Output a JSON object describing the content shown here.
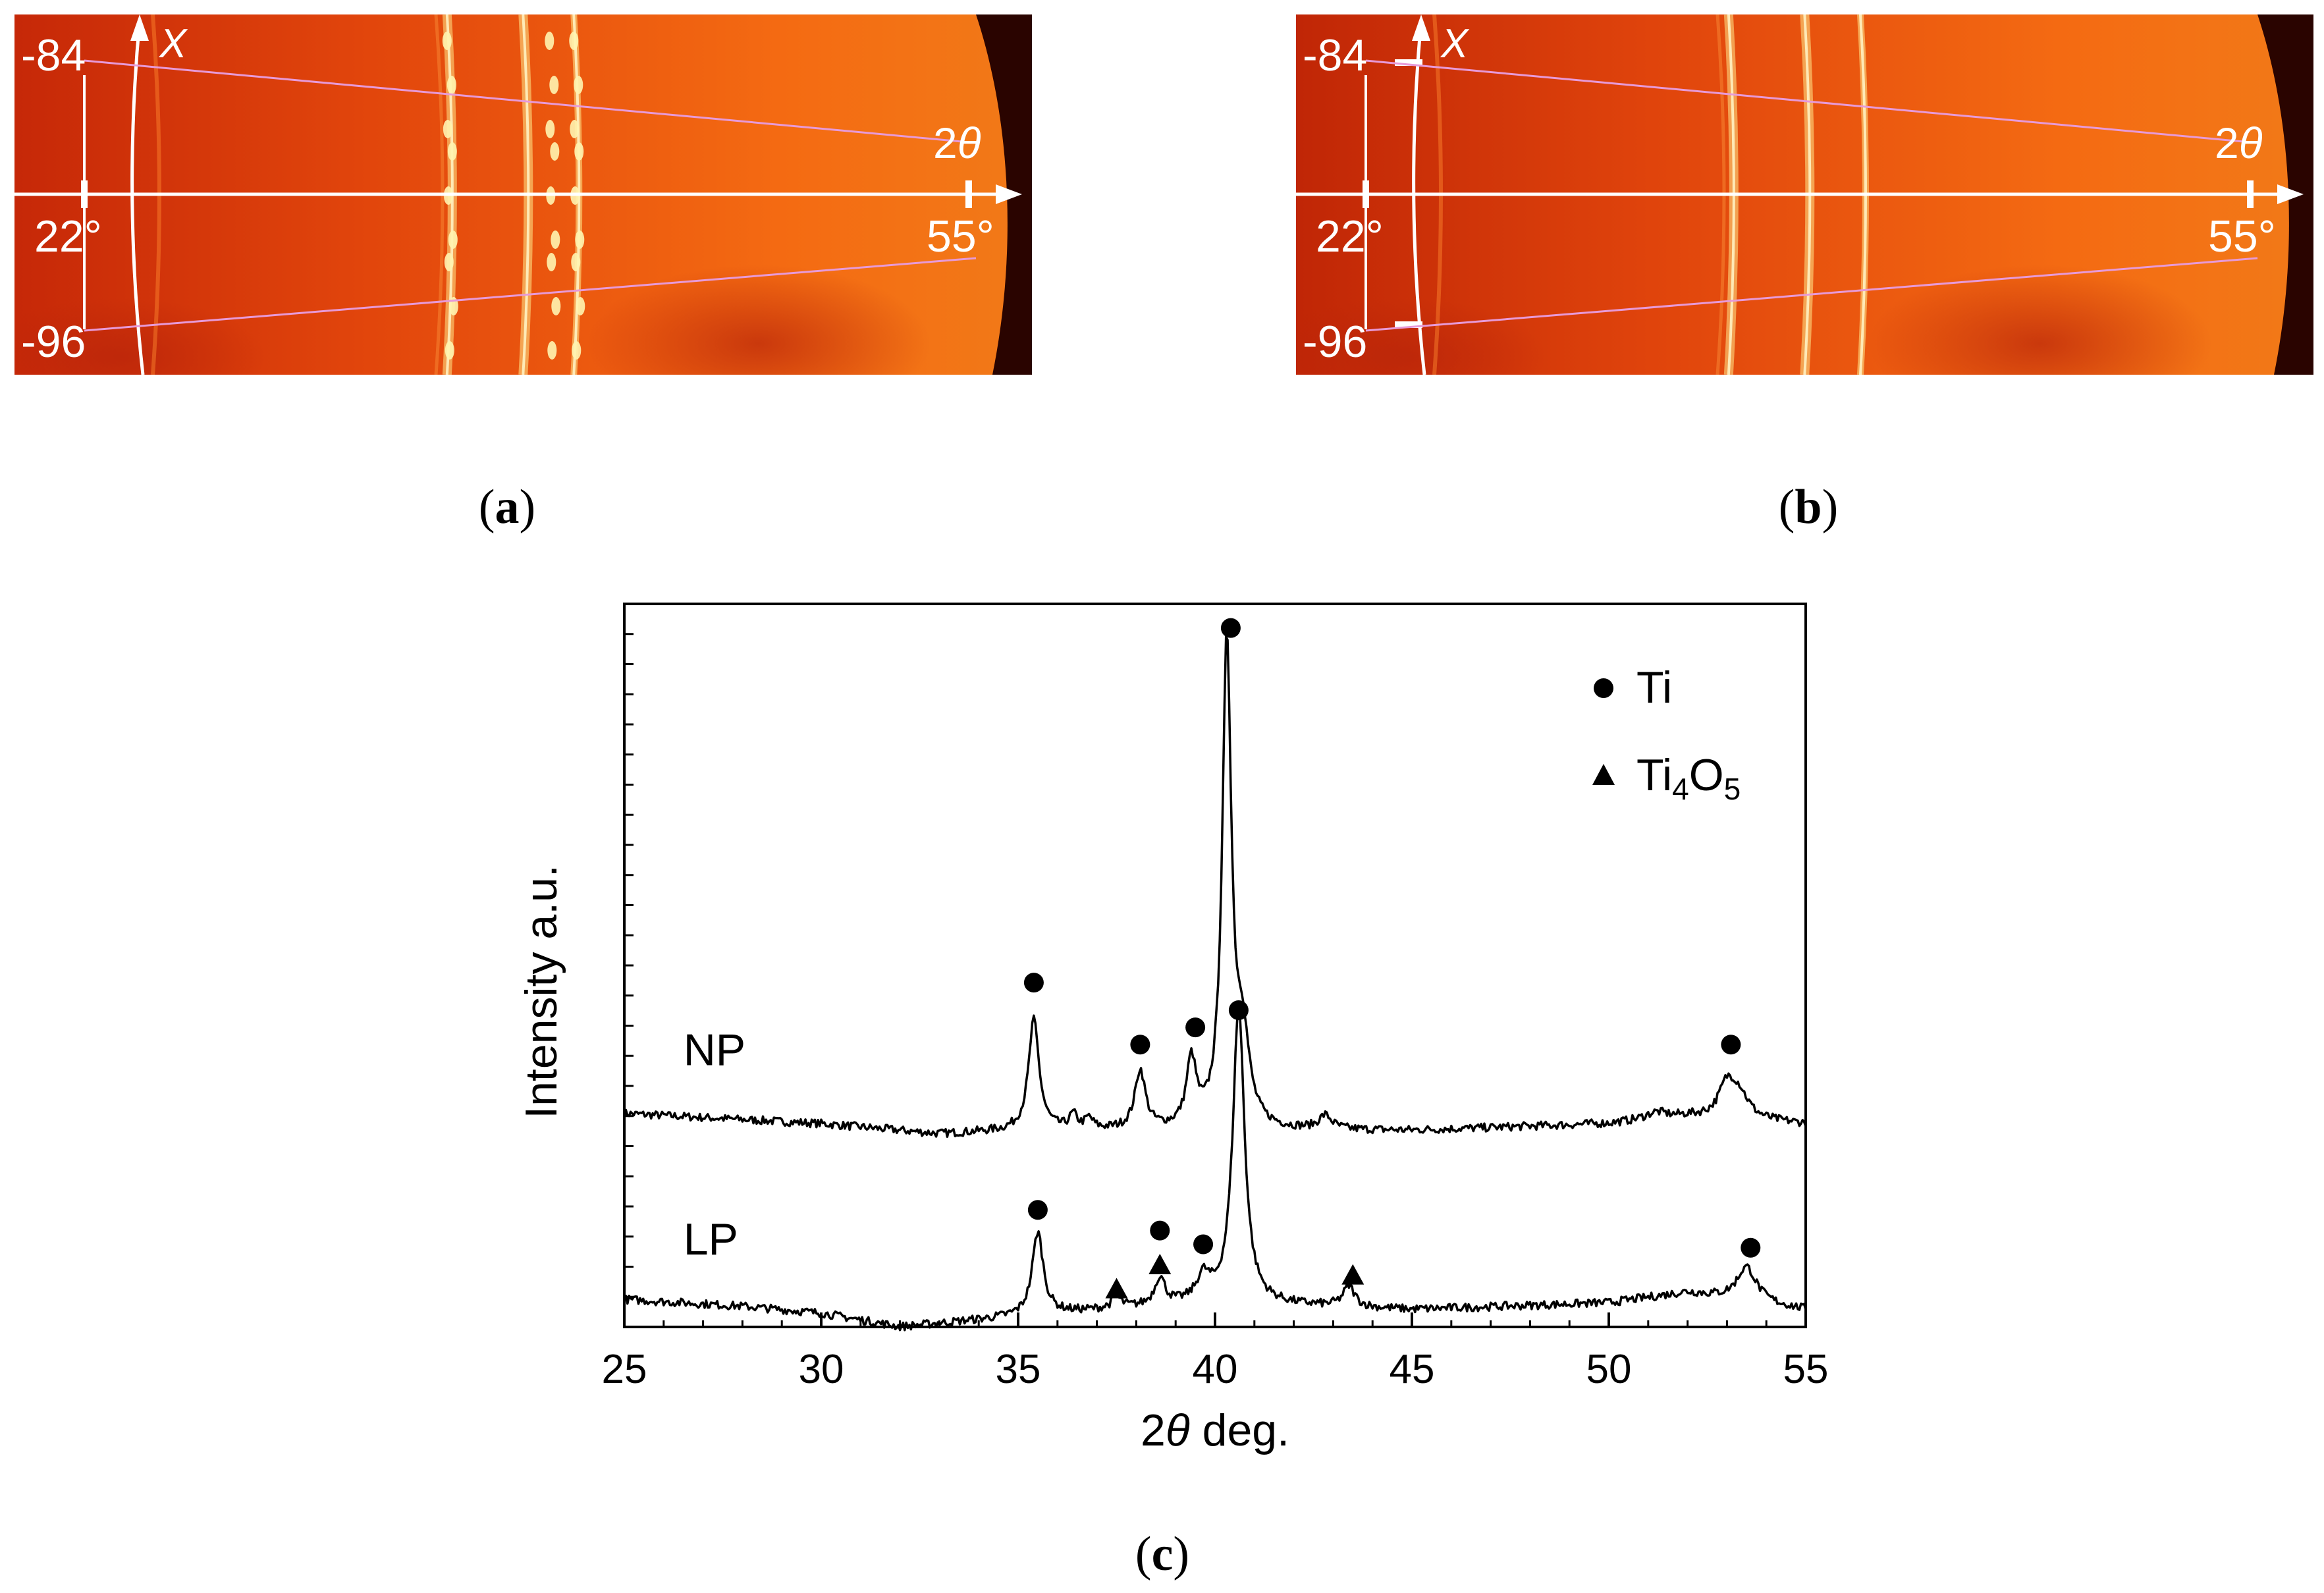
{
  "panels": [
    {
      "caption": "a",
      "labels": {
        "chi_top": "-84",
        "chi_bottom": "-96",
        "two_theta_start": "22°",
        "two_theta_end": "55°",
        "chi_axis": "X",
        "two_theta_axis": "2θ"
      },
      "ring_positions_2theta": [
        35.3,
        38.3,
        40.3
      ],
      "spotty": true
    },
    {
      "caption": "b",
      "labels": {
        "chi_top": "-84",
        "chi_bottom": "-96",
        "two_theta_start": "22°",
        "two_theta_end": "55°",
        "chi_axis": "X",
        "two_theta_axis": "2θ"
      },
      "ring_positions_2theta": [
        35.3,
        38.3,
        40.5
      ],
      "spotty": false
    }
  ],
  "figure_caption": "c",
  "colors": {
    "frame_dark": "#2a0400",
    "field_red": "#d8320a",
    "field_orange": "#f46a12",
    "ring": "#ffe88a",
    "overlay_line": "#ffffff",
    "guide_line": "#e79ad8",
    "ink": "#000000"
  },
  "chart_data": {
    "type": "line",
    "title": "",
    "xlabel": "2θ deg.",
    "ylabel": "Intensity a.u.",
    "xlim": [
      25,
      55
    ],
    "ylim": [
      0,
      10.5
    ],
    "xticks": [
      25,
      30,
      35,
      40,
      45,
      50,
      55
    ],
    "y_minor_ticks": 24,
    "legend": [
      {
        "marker": "circle",
        "label": "Ti"
      },
      {
        "marker": "triangle",
        "label": "Ti4O5"
      }
    ],
    "series": [
      {
        "name": "NP",
        "baseline": [
          [
            25,
            3.1
          ],
          [
            30,
            2.95
          ],
          [
            33,
            2.8
          ],
          [
            35,
            2.85
          ],
          [
            45,
            2.85
          ],
          [
            50,
            2.95
          ],
          [
            52,
            3.05
          ],
          [
            55,
            2.95
          ]
        ],
        "peaks": [
          {
            "pos": 35.4,
            "height": 1.6,
            "width": 0.16
          },
          {
            "pos": 36.4,
            "height": 0.2,
            "width": 0.12
          },
          {
            "pos": 36.8,
            "height": 0.15,
            "width": 0.12
          },
          {
            "pos": 38.1,
            "height": 0.85,
            "width": 0.16
          },
          {
            "pos": 39.4,
            "height": 0.95,
            "width": 0.15
          },
          {
            "pos": 40.3,
            "height": 7.0,
            "width": 0.14
          },
          {
            "pos": 40.7,
            "height": 1.2,
            "width": 0.2
          },
          {
            "pos": 42.8,
            "height": 0.2,
            "width": 0.2
          },
          {
            "pos": 51.2,
            "height": 0.1,
            "width": 0.35
          },
          {
            "pos": 53.0,
            "height": 0.45,
            "width": 0.25
          },
          {
            "pos": 53.3,
            "height": 0.35,
            "width": 0.3
          }
        ],
        "markers": [
          {
            "type": "circle",
            "x": 35.4,
            "y": 5.0
          },
          {
            "type": "circle",
            "x": 38.1,
            "y": 4.1
          },
          {
            "type": "circle",
            "x": 39.5,
            "y": 4.35
          },
          {
            "type": "circle",
            "x": 40.4,
            "y": 10.15
          },
          {
            "type": "circle",
            "x": 40.6,
            "y": 4.6
          },
          {
            "type": "circle",
            "x": 53.1,
            "y": 4.1
          }
        ],
        "label": "NP",
        "label_x": 26.5,
        "label_y": 3.8
      },
      {
        "name": "LP",
        "baseline": [
          [
            25,
            0.4
          ],
          [
            28,
            0.3
          ],
          [
            30,
            0.2
          ],
          [
            32,
            0.0
          ],
          [
            34,
            0.1
          ],
          [
            36,
            0.2
          ],
          [
            40,
            0.35
          ],
          [
            45,
            0.25
          ],
          [
            50,
            0.35
          ],
          [
            52,
            0.5
          ],
          [
            55,
            0.25
          ]
        ],
        "peaks": [
          {
            "pos": 35.5,
            "height": 1.2,
            "width": 0.17
          },
          {
            "pos": 37.5,
            "height": 0.15,
            "width": 0.15
          },
          {
            "pos": 38.6,
            "height": 0.4,
            "width": 0.16
          },
          {
            "pos": 39.7,
            "height": 0.35,
            "width": 0.2
          },
          {
            "pos": 40.6,
            "height": 4.3,
            "width": 0.18
          },
          {
            "pos": 43.4,
            "height": 0.3,
            "width": 0.18
          },
          {
            "pos": 53.5,
            "height": 0.5,
            "width": 0.3
          }
        ],
        "markers": [
          {
            "type": "circle",
            "x": 35.5,
            "y": 1.7
          },
          {
            "type": "circle",
            "x": 38.6,
            "y": 1.4
          },
          {
            "type": "circle",
            "x": 39.7,
            "y": 1.2
          },
          {
            "type": "circle",
            "x": 53.6,
            "y": 1.15
          },
          {
            "type": "triangle",
            "x": 37.5,
            "y": 0.55
          },
          {
            "type": "triangle",
            "x": 38.6,
            "y": 0.9
          },
          {
            "type": "triangle",
            "x": 43.5,
            "y": 0.75
          }
        ],
        "label": "LP",
        "label_x": 26.5,
        "label_y": 1.05
      }
    ]
  }
}
